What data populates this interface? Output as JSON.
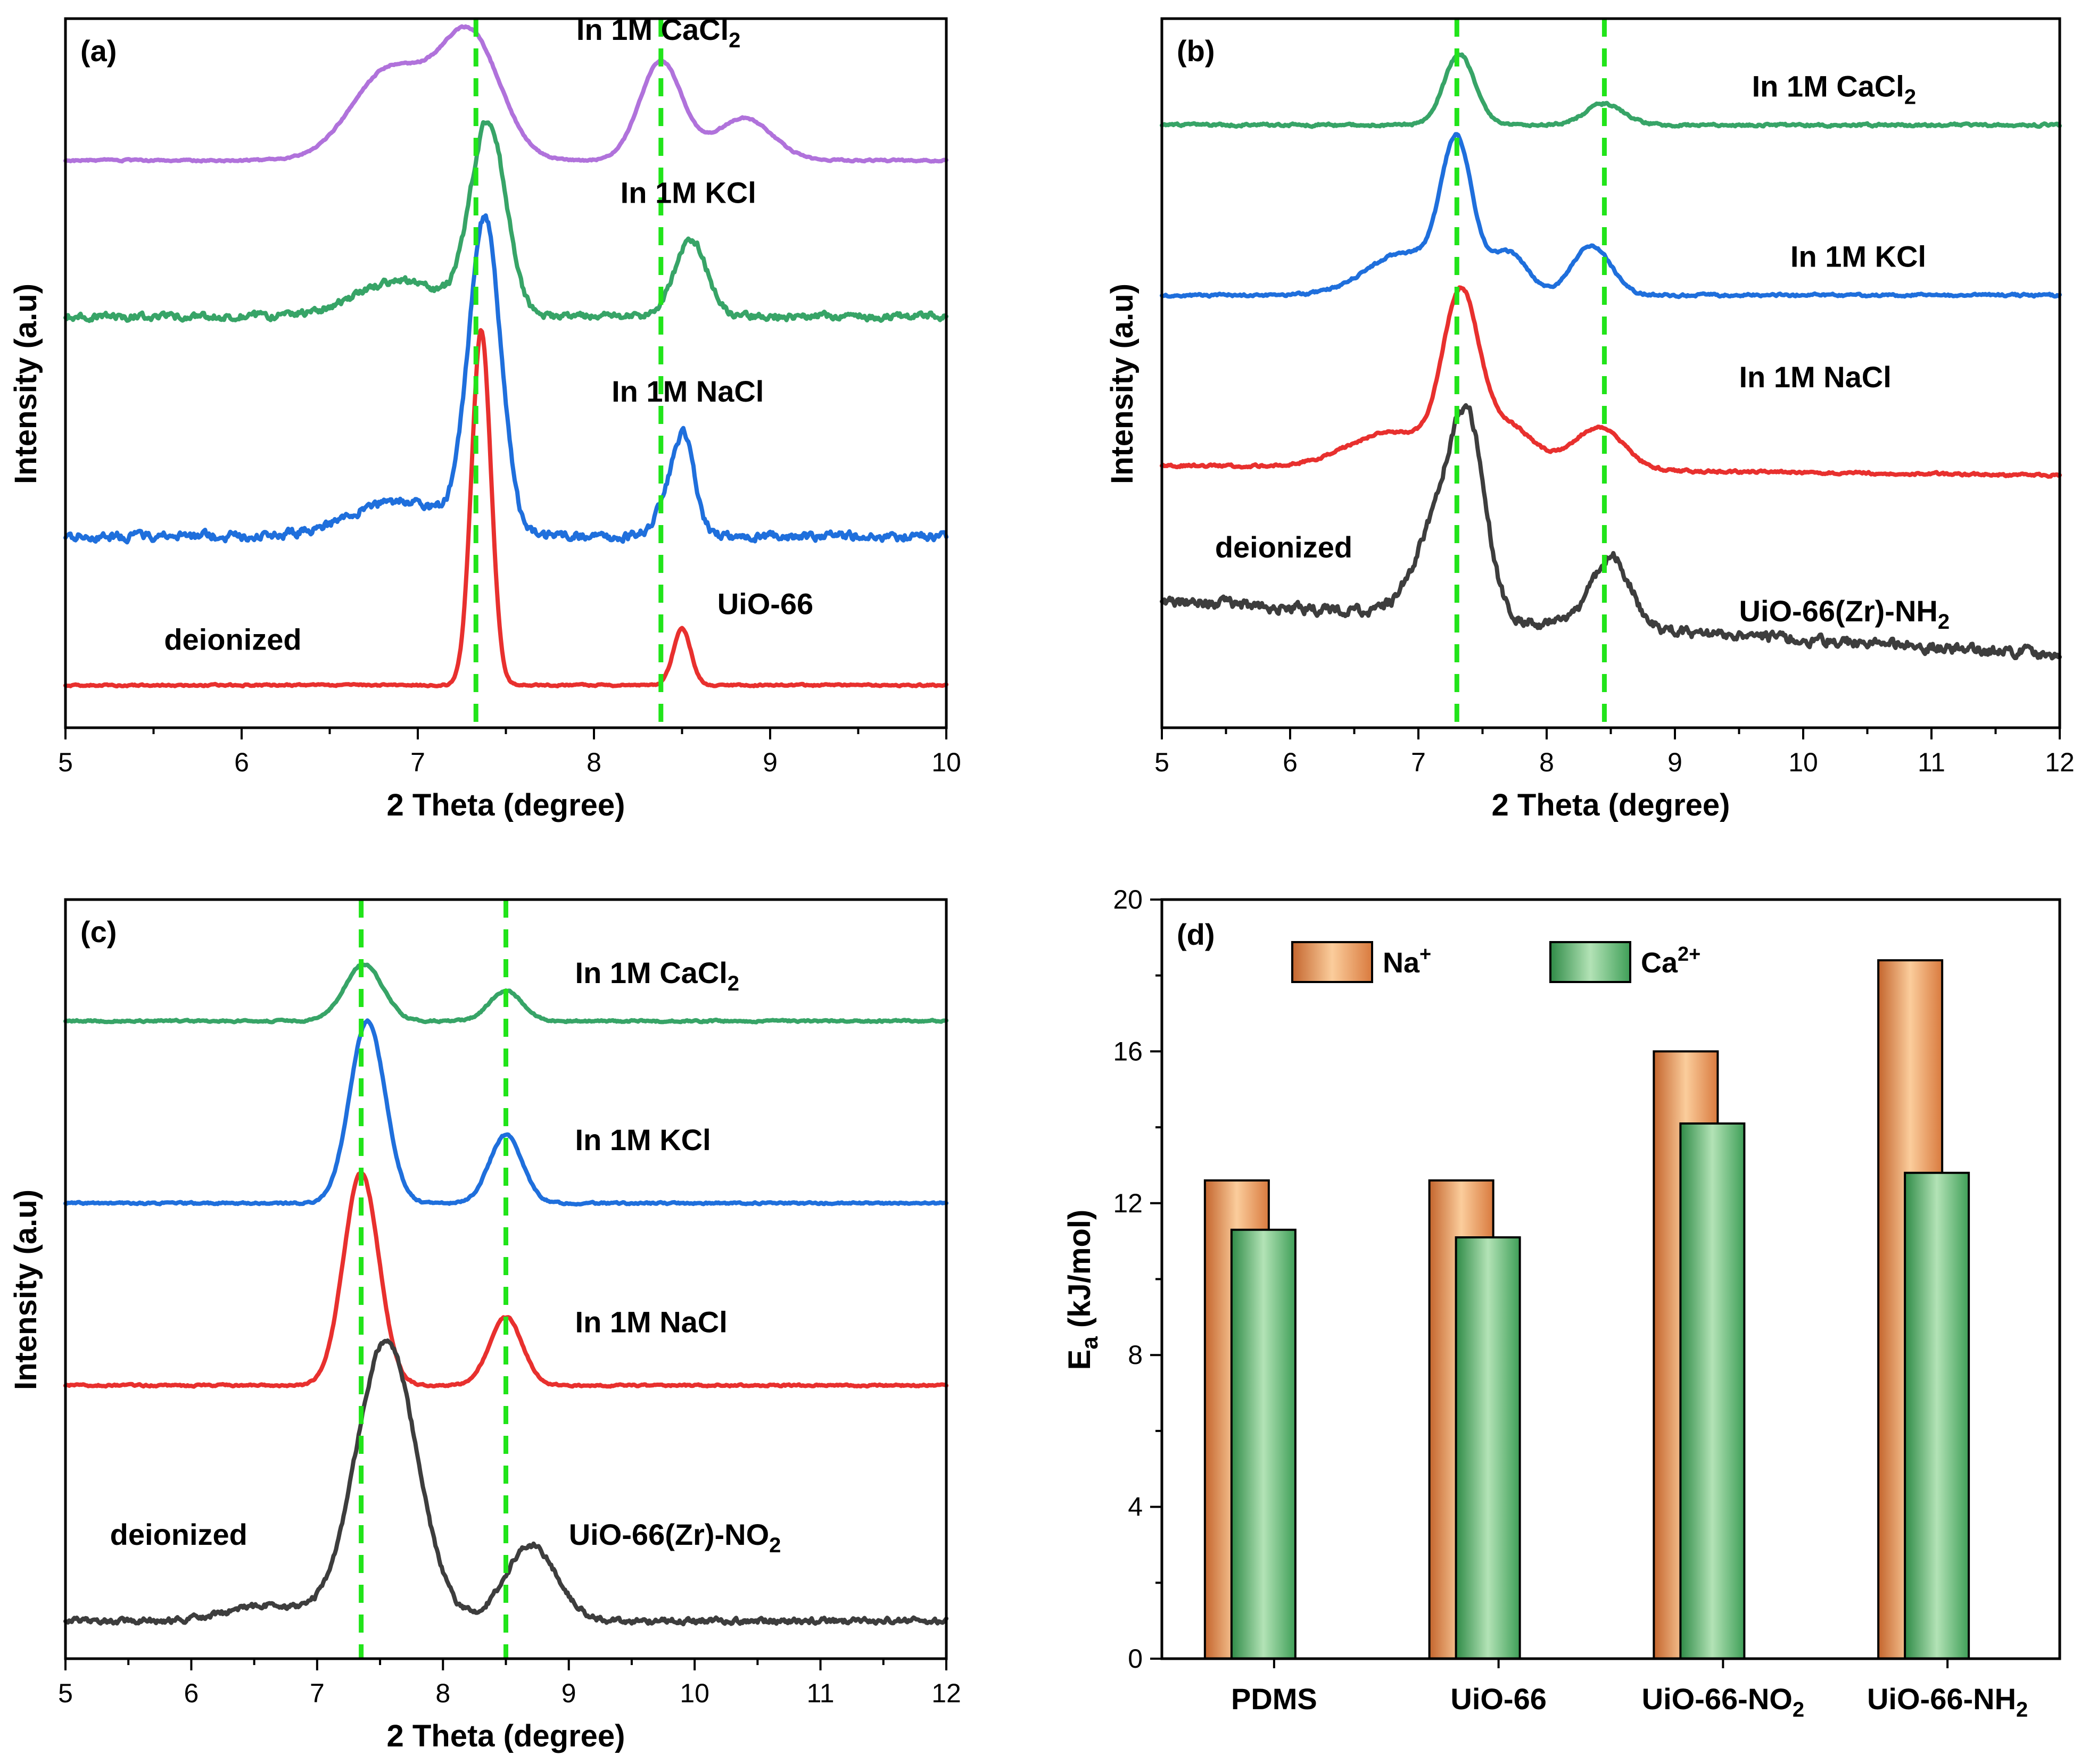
{
  "colors": {
    "purple": "#b072db",
    "green": "#37a467",
    "blue": "#1f6fdc",
    "red": "#e8302e",
    "gray": "#3d3d3d",
    "guide": "#21e41a",
    "na_bar": "#e9985f",
    "ca_bar": "#6cc07e"
  },
  "chart_data": [
    {
      "panel": "(a)",
      "type": "line",
      "xlabel": "2 Theta (degree)",
      "ylabel": "Intensity (a.u)",
      "xlim": [
        5,
        10
      ],
      "xticks": [
        5,
        6,
        7,
        8,
        9,
        10
      ],
      "guide_lines": [
        7.33,
        8.38
      ],
      "series": [
        {
          "label": "In 1M CaCl",
          "sub": "2",
          "color": "purple",
          "offset": 0.8,
          "label_x": 7.9,
          "label_off": 0.17,
          "peaks": [
            [
              6.85,
              0.13,
              0.22
            ],
            [
              7.3,
              0.17,
              0.17
            ],
            [
              8.38,
              0.14,
              0.12
            ],
            [
              8.85,
              0.06,
              0.16
            ]
          ],
          "noise": 0.002,
          "slope": 0
        },
        {
          "label": "In 1M KCl",
          "color": "green",
          "offset": 0.58,
          "label_x": 8.15,
          "label_off": 0.16,
          "peaks": [
            [
              6.9,
              0.05,
              0.25
            ],
            [
              7.4,
              0.27,
              0.1
            ],
            [
              8.55,
              0.11,
              0.09
            ]
          ],
          "noise": 0.008,
          "slope": 0
        },
        {
          "label": "In 1M NaCl",
          "color": "blue",
          "offset": 0.27,
          "label_x": 8.1,
          "label_off": 0.19,
          "peaks": [
            [
              6.9,
              0.05,
              0.28
            ],
            [
              7.38,
              0.44,
              0.09
            ],
            [
              8.45,
              0.06,
              0.08
            ],
            [
              8.52,
              0.1,
              0.06
            ]
          ],
          "noise": 0.01,
          "slope": 0
        },
        {
          "label": "UiO-66",
          "color": "red",
          "offset": 0.06,
          "label_x": 8.7,
          "label_off": 0.1,
          "note": "deionized",
          "note_x": 5.95,
          "note_off": 0.05,
          "peaks": [
            [
              7.36,
              0.5,
              0.055
            ],
            [
              8.5,
              0.08,
              0.05
            ]
          ],
          "noise": 0.002,
          "slope": 0
        }
      ]
    },
    {
      "panel": "(b)",
      "type": "line",
      "xlabel": "2 Theta (degree)",
      "ylabel": "Intensity (a.u)",
      "xlim": [
        5,
        12
      ],
      "xticks": [
        5,
        6,
        7,
        8,
        9,
        10,
        11,
        12
      ],
      "guide_lines": [
        7.3,
        8.45
      ],
      "series": [
        {
          "label": "In 1M CaCl",
          "sub": "2",
          "color": "green",
          "offset": 0.85,
          "label_x": 9.6,
          "label_off": 0.04,
          "peaks": [
            [
              7.32,
              0.1,
              0.12
            ],
            [
              8.45,
              0.03,
              0.15
            ]
          ],
          "noise": 0.003,
          "slope": 0
        },
        {
          "label": "In 1M KCl",
          "color": "blue",
          "offset": 0.61,
          "label_x": 9.9,
          "label_off": 0.04,
          "peaks": [
            [
              6.9,
              0.06,
              0.3
            ],
            [
              7.3,
              0.2,
              0.12
            ],
            [
              7.7,
              0.06,
              0.15
            ],
            [
              8.35,
              0.07,
              0.15
            ]
          ],
          "noise": 0.003,
          "slope": 0
        },
        {
          "label": "In 1M NaCl",
          "color": "red",
          "offset": 0.37,
          "label_x": 9.5,
          "label_off": 0.11,
          "peaks": [
            [
              6.8,
              0.05,
              0.35
            ],
            [
              7.33,
              0.23,
              0.14
            ],
            [
              7.7,
              0.06,
              0.2
            ],
            [
              8.4,
              0.06,
              0.2
            ]
          ],
          "noise": 0.003,
          "slope": -0.002
        },
        {
          "label": "UiO-66(Zr)-NH",
          "sub": "2",
          "color": "gray",
          "offset": 0.18,
          "label_x": 9.5,
          "label_off": -0.03,
          "note": "deionized",
          "note_x": 5.95,
          "note_off": 0.06,
          "peaks": [
            [
              7.2,
              0.15,
              0.2
            ],
            [
              7.4,
              0.2,
              0.13
            ],
            [
              8.5,
              0.1,
              0.15
            ]
          ],
          "noise": 0.012,
          "slope": -0.011
        }
      ]
    },
    {
      "panel": "(c)",
      "type": "line",
      "xlabel": "2 Theta (degree)",
      "ylabel": "Intensity (a.u)",
      "xlim": [
        5,
        12
      ],
      "xticks": [
        5,
        6,
        7,
        8,
        9,
        10,
        11,
        12
      ],
      "guide_lines": [
        7.35,
        8.5
      ],
      "series": [
        {
          "label": "In 1M CaCl",
          "sub": "2",
          "color": "green",
          "offset": 0.84,
          "label_x": 9.05,
          "label_off": 0.05,
          "peaks": [
            [
              7.37,
              0.075,
              0.15
            ],
            [
              8.5,
              0.04,
              0.13
            ]
          ],
          "noise": 0.002,
          "slope": 0
        },
        {
          "label": "In 1M KCl",
          "color": "blue",
          "offset": 0.6,
          "label_x": 9.05,
          "label_off": 0.07,
          "peaks": [
            [
              7.4,
              0.24,
              0.14
            ],
            [
              8.5,
              0.09,
              0.13
            ]
          ],
          "noise": 0.002,
          "slope": 0
        },
        {
          "label": "In 1M NaCl",
          "color": "red",
          "offset": 0.36,
          "label_x": 9.05,
          "label_off": 0.07,
          "peaks": [
            [
              7.35,
              0.28,
              0.14
            ],
            [
              8.5,
              0.09,
              0.13
            ]
          ],
          "noise": 0.002,
          "slope": 0
        },
        {
          "label": "UiO-66(Zr)-NO",
          "sub": "2",
          "color": "gray",
          "offset": 0.05,
          "label_x": 9.0,
          "label_off": 0.1,
          "note": "deionized",
          "note_x": 5.9,
          "note_off": 0.1,
          "peaks": [
            [
              7.55,
              0.37,
              0.24
            ],
            [
              8.7,
              0.1,
              0.2
            ],
            [
              6.6,
              0.02,
              0.3
            ]
          ],
          "noise": 0.006,
          "slope": 0
        }
      ]
    },
    {
      "panel": "(d)",
      "type": "bar",
      "ylabel_main": "E",
      "ylabel_sub": "a",
      "ylabel_rest": " (kJ/mol)",
      "ylim": [
        0,
        20
      ],
      "yticks": [
        0,
        4,
        8,
        12,
        16,
        20
      ],
      "categories": [
        {
          "label": "PDMS"
        },
        {
          "label": "UiO-66"
        },
        {
          "label": "UiO-66-NO",
          "sub": "2"
        },
        {
          "label": "UiO-66-NH",
          "sub": "2"
        }
      ],
      "series": [
        {
          "name": "Na",
          "sup": "+",
          "color": "na_bar",
          "values": [
            12.6,
            12.6,
            16.0,
            18.4
          ]
        },
        {
          "name": "Ca",
          "sup": "2+",
          "color": "ca_bar",
          "values": [
            11.3,
            11.1,
            14.1,
            12.8
          ]
        }
      ]
    }
  ]
}
